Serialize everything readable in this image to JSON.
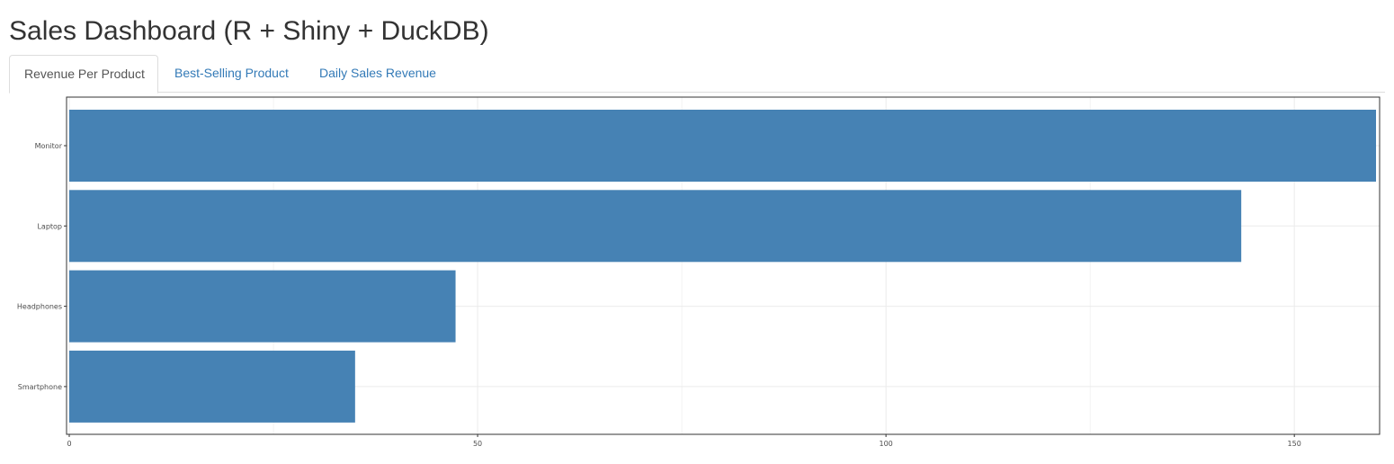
{
  "page": {
    "title": "Sales Dashboard (R + Shiny + DuckDB)"
  },
  "tabs": [
    {
      "label": "Revenue Per Product",
      "active": true
    },
    {
      "label": "Best-Selling Product",
      "active": false
    },
    {
      "label": "Daily Sales Revenue",
      "active": false
    }
  ],
  "colors": {
    "bar": "#4682b4",
    "link": "#337ab7",
    "grid": "#ebebeb",
    "panel_border": "#333333"
  },
  "chart_data": {
    "type": "bar",
    "orientation": "horizontal",
    "categories": [
      "Monitor",
      "Laptop",
      "Headphones",
      "Smartphone"
    ],
    "values": [
      160,
      143.5,
      47.3,
      35
    ],
    "x_ticks": [
      "0",
      "50",
      "100",
      "150"
    ],
    "xlim": [
      0,
      160
    ],
    "xlabel": "",
    "ylabel": "",
    "grid": true,
    "legend": "none"
  }
}
